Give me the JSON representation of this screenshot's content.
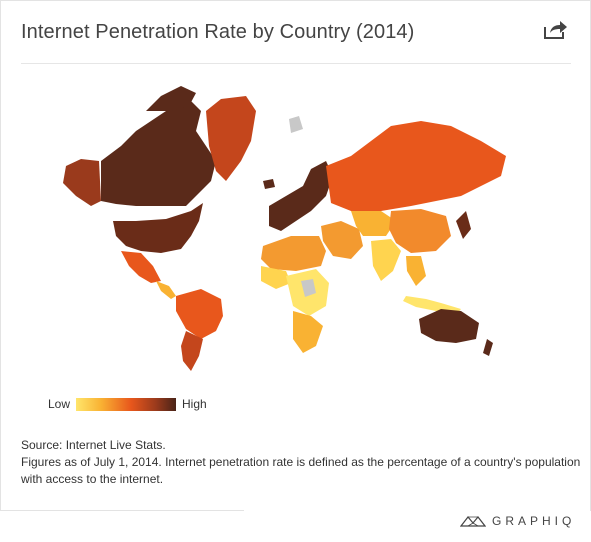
{
  "header": {
    "title": "Internet Penetration Rate by Country (2014)"
  },
  "legend": {
    "low_label": "Low",
    "high_label": "High",
    "scale_colors": [
      "#ffe56b",
      "#f9b233",
      "#e8571c",
      "#9a3a1c",
      "#4a2418"
    ]
  },
  "notes": {
    "source": "Source: Internet Live Stats.",
    "description": "Figures as of July 1, 2014. Internet penetration rate is defined as the percentage of a country's population with access to the internet."
  },
  "brand": {
    "name": "GRAPHIQ"
  },
  "icons": {
    "share": "share-icon",
    "logo": "graphiq-logo-icon"
  },
  "map": {
    "regions": [
      {
        "name": "canada-alaska",
        "level": "very-high"
      },
      {
        "name": "greenland",
        "level": "high"
      },
      {
        "name": "united-states",
        "level": "very-high"
      },
      {
        "name": "mexico",
        "level": "medium-high"
      },
      {
        "name": "south-america",
        "level": "medium-high"
      },
      {
        "name": "europe",
        "level": "very-high"
      },
      {
        "name": "russia",
        "level": "high"
      },
      {
        "name": "china",
        "level": "medium"
      },
      {
        "name": "africa",
        "level": "low"
      },
      {
        "name": "middle-east",
        "level": "medium"
      },
      {
        "name": "india",
        "level": "low"
      },
      {
        "name": "australia",
        "level": "very-high"
      },
      {
        "name": "japan-korea",
        "level": "very-high"
      },
      {
        "name": "no-data",
        "level": "none"
      }
    ]
  }
}
